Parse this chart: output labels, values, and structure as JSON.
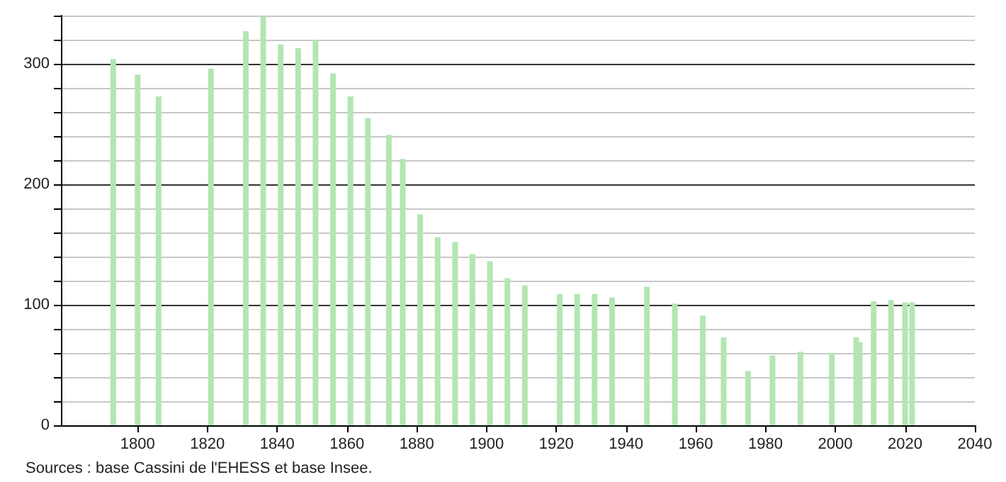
{
  "chart_data": {
    "type": "bar",
    "x": [
      1793,
      1800,
      1806,
      1821,
      1831,
      1836,
      1841,
      1846,
      1851,
      1856,
      1861,
      1866,
      1872,
      1876,
      1881,
      1886,
      1891,
      1896,
      1901,
      1906,
      1911,
      1921,
      1926,
      1931,
      1936,
      1946,
      1954,
      1962,
      1968,
      1975,
      1982,
      1990,
      1999,
      2006,
      2007,
      2011,
      2016,
      2020,
      2022
    ],
    "values": [
      304,
      291,
      273,
      296,
      327,
      339,
      316,
      313,
      320,
      292,
      273,
      255,
      241,
      221,
      175,
      156,
      152,
      142,
      136,
      122,
      116,
      109,
      109,
      109,
      106,
      115,
      101,
      91,
      73,
      45,
      58,
      61,
      60,
      73,
      69,
      103,
      104,
      102,
      102
    ],
    "color": "#b3e6b3",
    "xlim": [
      1778,
      2040
    ],
    "xticks": [
      1800,
      1820,
      1840,
      1860,
      1880,
      1900,
      1920,
      1940,
      1960,
      1980,
      2000,
      2020,
      2040
    ],
    "ylim": [
      0,
      340
    ],
    "yticks": [
      0,
      {
        "value": 20,
        "label": null
      },
      {
        "value": 40,
        "label": null
      },
      {
        "value": 60,
        "label": null
      },
      {
        "value": 80,
        "label": null
      },
      100,
      {
        "value": 120,
        "label": null
      },
      {
        "value": 140,
        "label": null
      },
      {
        "value": 160,
        "label": null
      },
      {
        "value": 180,
        "label": null
      },
      200,
      {
        "value": 220,
        "label": null
      },
      {
        "value": 240,
        "label": null
      },
      {
        "value": 260,
        "label": null
      },
      {
        "value": 280,
        "label": null
      },
      300,
      {
        "value": 320,
        "label": null
      },
      {
        "value": 340,
        "label": null
      }
    ],
    "grid": "y",
    "annotations": [
      "Sources : base Cassini de l'EHESS et base Insee."
    ]
  }
}
